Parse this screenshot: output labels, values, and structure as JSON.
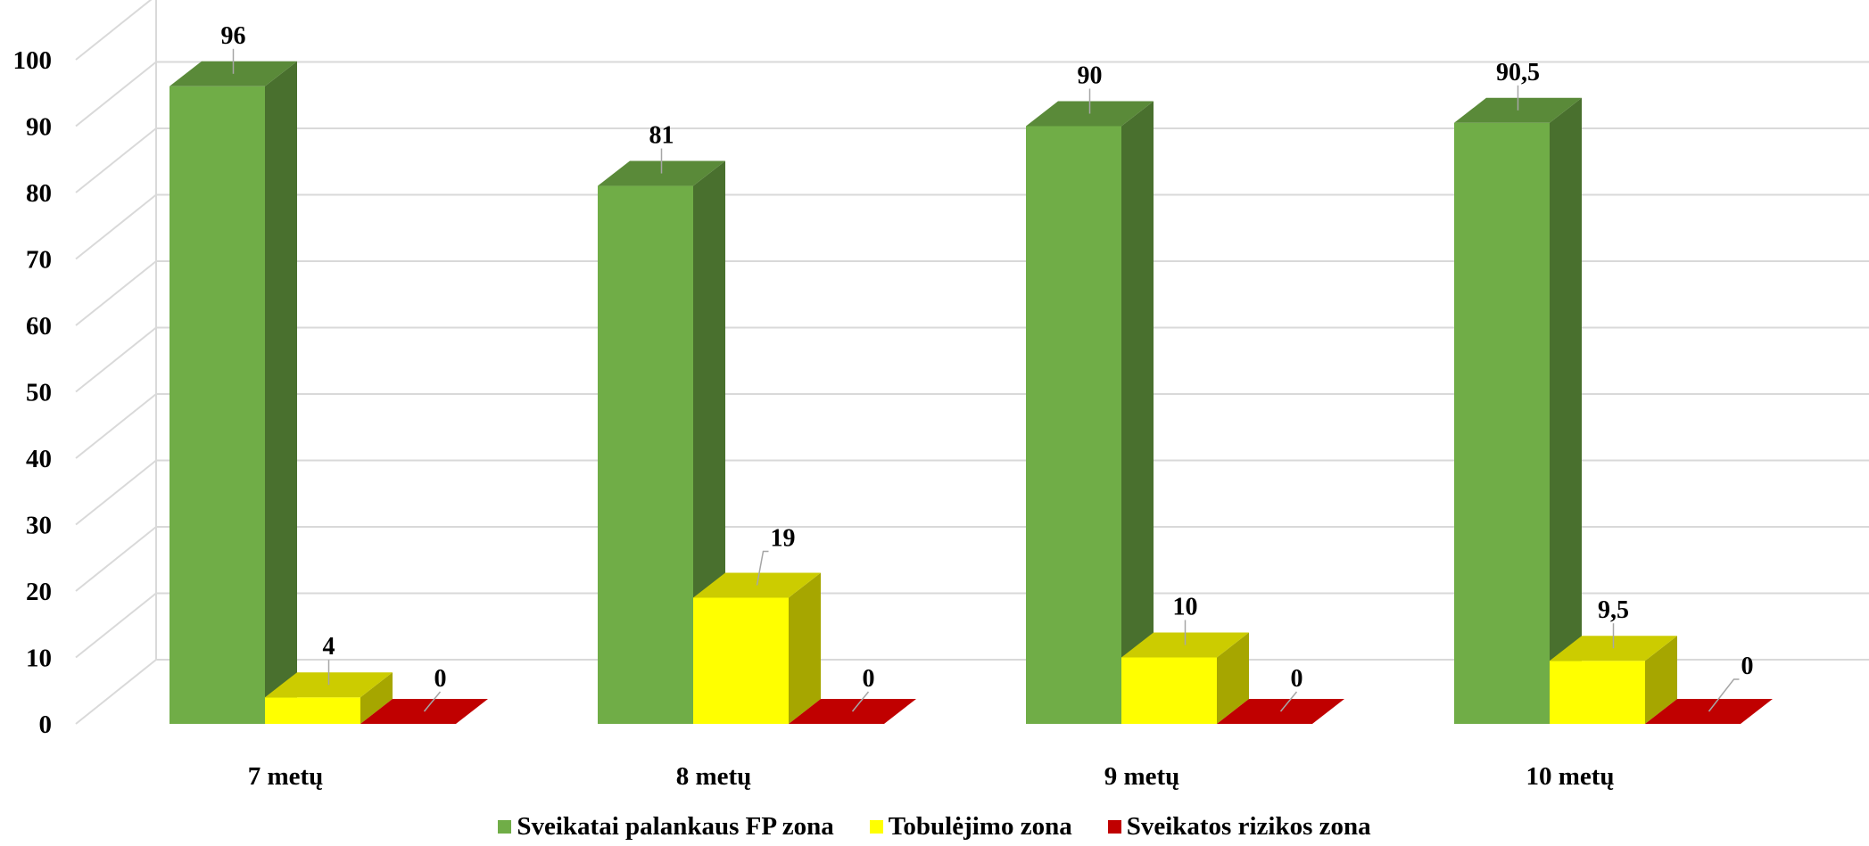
{
  "chart_data": {
    "type": "bar",
    "title": "",
    "xlabel": "",
    "ylabel": "",
    "ylim": [
      0,
      100
    ],
    "yticks": [
      0,
      10,
      20,
      30,
      40,
      50,
      60,
      70,
      80,
      90,
      100
    ],
    "grid": true,
    "three_d": true,
    "legend_position": "bottom",
    "categories": [
      "7 metų",
      "8 metų",
      "9 metų",
      "10 metų"
    ],
    "series": [
      {
        "name": "Sveikatai palankaus FP zona",
        "values": [
          96,
          81,
          90,
          90.5
        ],
        "labels": [
          "96",
          "81",
          "90",
          "90,5"
        ],
        "color": "#70AD47"
      },
      {
        "name": "Tobulėjimo zona",
        "values": [
          4,
          19,
          10,
          9.5
        ],
        "labels": [
          "4",
          "19",
          "10",
          "9,5"
        ],
        "color": "#FFFF00"
      },
      {
        "name": "Sveikatos rizikos zona",
        "values": [
          0,
          0,
          0,
          0
        ],
        "labels": [
          "0",
          "0",
          "0",
          "0"
        ],
        "color": "#C00000"
      }
    ]
  }
}
